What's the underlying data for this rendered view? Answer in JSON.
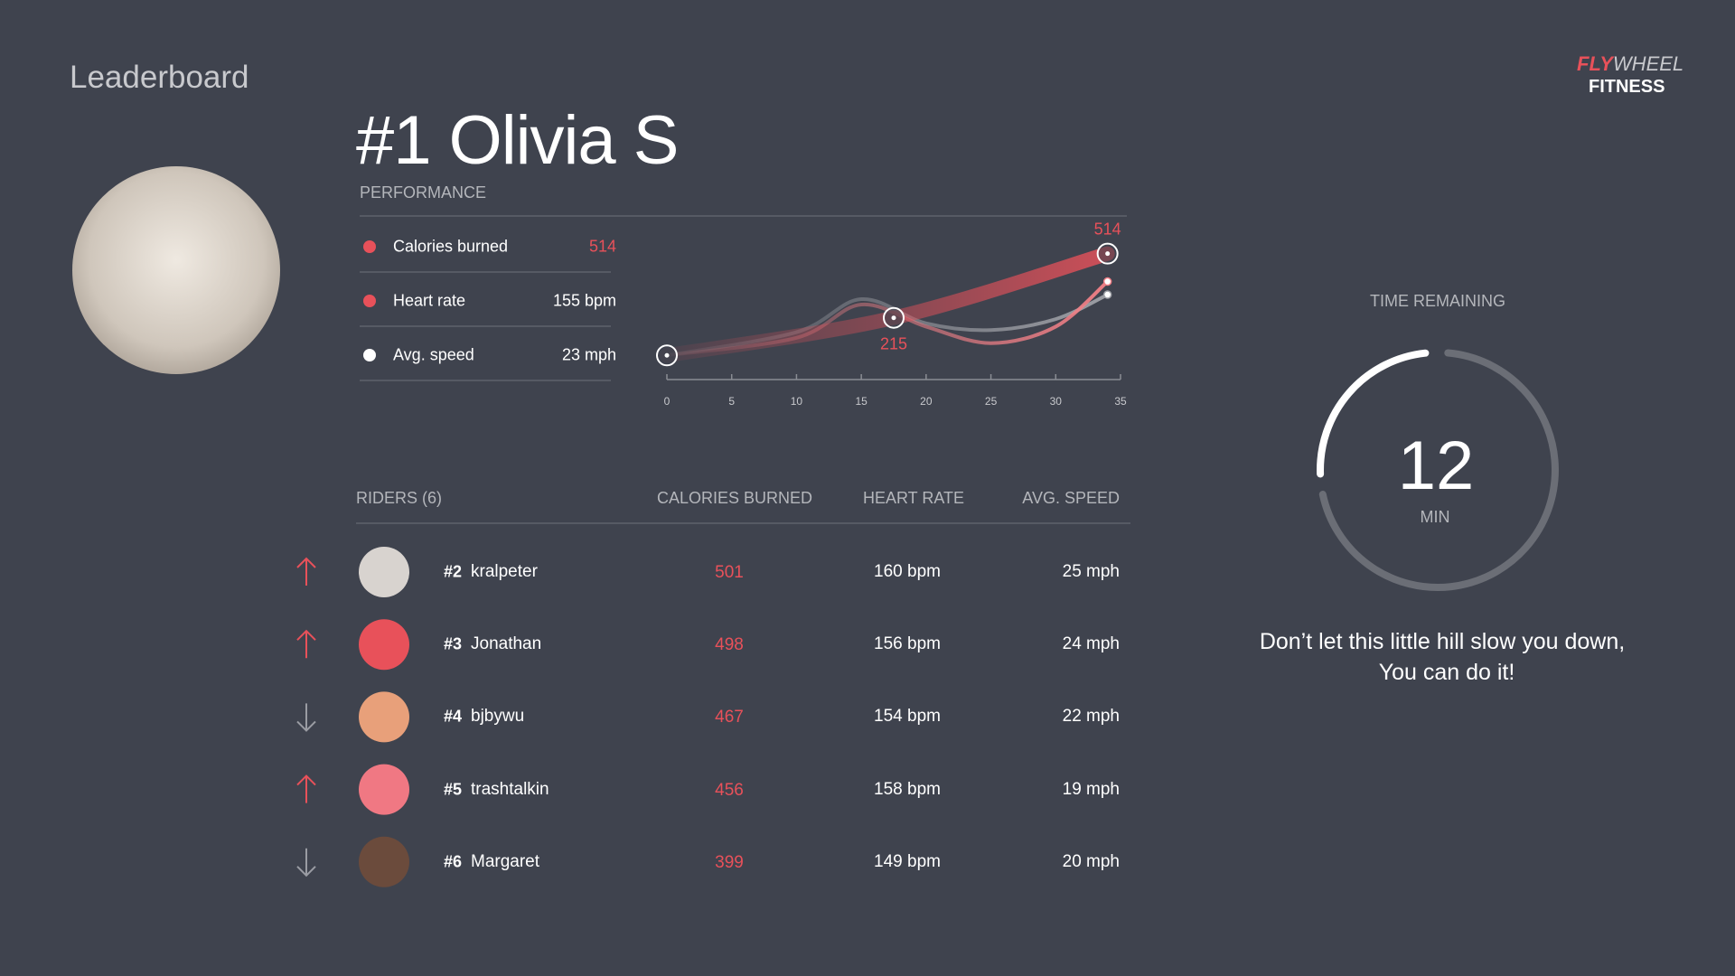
{
  "header": {
    "title": "Leaderboard"
  },
  "logo": {
    "fly": "FLY",
    "wheel": "WHEEL",
    "fitness": "FITNESS"
  },
  "profile": {
    "name": "#1 Olivia S",
    "section": "PERFORMANCE",
    "avatar_color": "#d9d2c8"
  },
  "metrics": [
    {
      "label": "Calories burned",
      "value": "514",
      "color": "#e8515a",
      "value_color": "#e8515a"
    },
    {
      "label": "Heart rate",
      "value": "155 bpm",
      "color": "#e8515a",
      "value_color": "#ffffff"
    },
    {
      "label": "Avg. speed",
      "value": "23 mph",
      "color": "#ffffff",
      "value_color": "#ffffff"
    }
  ],
  "chart": {
    "type": "line",
    "xlim": [
      0,
      35
    ],
    "xticks": [
      0,
      5,
      10,
      15,
      20,
      25,
      30,
      35
    ],
    "ylim": [
      -60,
      660
    ],
    "series": [
      {
        "color": "#9ea0a6",
        "marker": "end-dot",
        "x": [
          0,
          10,
          15,
          20,
          25,
          30,
          34
        ],
        "values": [
          40,
          148,
          302,
          189,
          158,
          209,
          323
        ]
      },
      {
        "color": "#f07f86",
        "marker": "end-dot",
        "x": [
          0,
          10,
          15,
          20,
          25,
          30,
          34
        ],
        "values": [
          40,
          122,
          277,
          174,
          97,
          174,
          384
        ]
      },
      {
        "color": "#e8515a",
        "marker": "ring",
        "x": [
          0,
          17.5,
          34
        ],
        "values": [
          40,
          215,
          514
        ],
        "value_labels": [
          null,
          "215",
          "514"
        ]
      }
    ]
  },
  "riders": {
    "title": "RIDERS (6)",
    "columns": [
      "CALORIES BURNED",
      "HEART RATE",
      "AVG. SPEED"
    ],
    "rows": [
      {
        "trend": "up",
        "rank": "#2",
        "name": "kralpeter",
        "calories": 501,
        "heart_rate": "160 bpm",
        "speed": "25 mph",
        "avatar_color": "#d8d3cf"
      },
      {
        "trend": "up",
        "rank": "#3",
        "name": "Jonathan",
        "calories": 498,
        "heart_rate": "156 bpm",
        "speed": "24 mph",
        "avatar_color": "#e8515a"
      },
      {
        "trend": "down",
        "rank": "#4",
        "name": "bjbywu",
        "calories": 467,
        "heart_rate": "154 bpm",
        "speed": "22 mph",
        "avatar_color": "#e8a07a"
      },
      {
        "trend": "up",
        "rank": "#5",
        "name": "trashtalkin",
        "calories": 456,
        "heart_rate": "158 bpm",
        "speed": "19 mph",
        "avatar_color": "#f07883"
      },
      {
        "trend": "down",
        "rank": "#6",
        "name": "Margaret",
        "calories": 399,
        "heart_rate": "149 bpm",
        "speed": "20 mph",
        "avatar_color": "#6b4b3c"
      }
    ]
  },
  "timer": {
    "title": "TIME REMAINING",
    "value": 12,
    "unit": "MIN",
    "message": [
      "Don’t let this little hill slow you down,",
      "You can do it!"
    ]
  }
}
